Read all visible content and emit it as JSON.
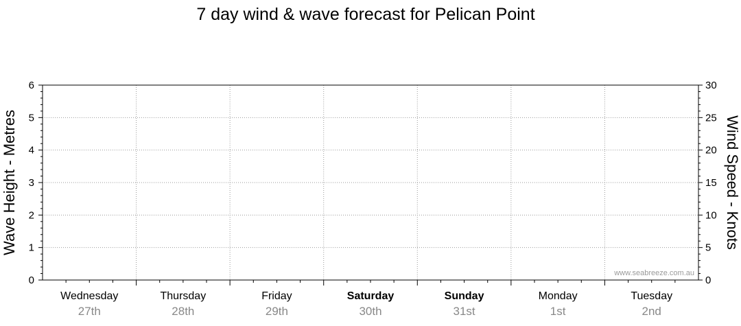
{
  "chart_data": {
    "type": "line",
    "title": "7 day wind & wave forecast for Pelican Point",
    "ylabel": "Wave Height - Metres",
    "y2label": "Wind Speed - Knots",
    "ylim": [
      0,
      6
    ],
    "y2lim": [
      0,
      30
    ],
    "yticks": [
      "0",
      "1",
      "2",
      "3",
      "4",
      "5",
      "6"
    ],
    "y2ticks": [
      "0",
      "5",
      "10",
      "15",
      "20",
      "25",
      "30"
    ],
    "grid": true,
    "days": [
      {
        "name": "Wednesday",
        "date": "27th",
        "bold": false
      },
      {
        "name": "Thursday",
        "date": "28th",
        "bold": false
      },
      {
        "name": "Friday",
        "date": "29th",
        "bold": false
      },
      {
        "name": "Saturday",
        "date": "30th",
        "bold": true
      },
      {
        "name": "Sunday",
        "date": "31st",
        "bold": true
      },
      {
        "name": "Monday",
        "date": "1st",
        "bold": false
      },
      {
        "name": "Tuesday",
        "date": "2nd",
        "bold": false
      }
    ],
    "series": [],
    "watermark": "www.seabreeze.com.au"
  }
}
